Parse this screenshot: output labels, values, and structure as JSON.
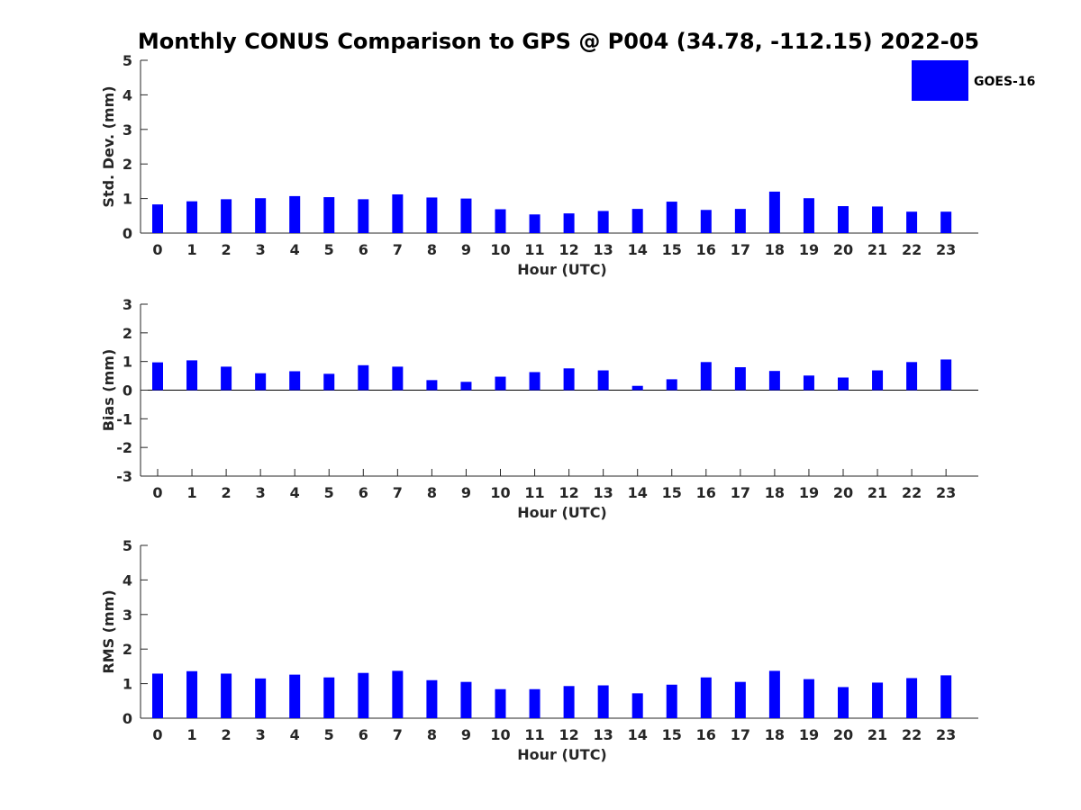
{
  "title": "Monthly CONUS Comparison to GPS @ P004 (34.78, -112.15) 2022-05",
  "legend": {
    "label": "GOES-16",
    "color": "#0000ff"
  },
  "chart_data": [
    {
      "type": "bar",
      "title": "",
      "xlabel": "Hour (UTC)",
      "ylabel": "Std. Dev. (mm)",
      "ylim": [
        0,
        5
      ],
      "yticks": [
        0,
        1,
        2,
        3,
        4,
        5
      ],
      "categories": [
        "0",
        "1",
        "2",
        "3",
        "4",
        "5",
        "6",
        "7",
        "8",
        "9",
        "10",
        "11",
        "12",
        "13",
        "14",
        "15",
        "16",
        "17",
        "18",
        "19",
        "20",
        "21",
        "22",
        "23"
      ],
      "series": [
        {
          "name": "GOES-16",
          "color": "#0000ff",
          "values": [
            0.83,
            0.92,
            0.98,
            1.01,
            1.07,
            1.04,
            0.98,
            1.12,
            1.03,
            1.0,
            0.69,
            0.54,
            0.57,
            0.64,
            0.7,
            0.91,
            0.67,
            0.7,
            1.2,
            1.01,
            0.78,
            0.77,
            0.62,
            0.62
          ]
        }
      ],
      "grid": false,
      "legend_position": "top-right"
    },
    {
      "type": "bar",
      "title": "",
      "xlabel": "Hour (UTC)",
      "ylabel": "Bias (mm)",
      "ylim": [
        -3,
        3
      ],
      "yticks": [
        -3,
        -2,
        -1,
        0,
        1,
        2,
        3
      ],
      "categories": [
        "0",
        "1",
        "2",
        "3",
        "4",
        "5",
        "6",
        "7",
        "8",
        "9",
        "10",
        "11",
        "12",
        "13",
        "14",
        "15",
        "16",
        "17",
        "18",
        "19",
        "20",
        "21",
        "22",
        "23"
      ],
      "series": [
        {
          "name": "GOES-16",
          "color": "#0000ff",
          "values": [
            0.97,
            1.04,
            0.82,
            0.59,
            0.66,
            0.57,
            0.87,
            0.82,
            0.35,
            0.29,
            0.47,
            0.63,
            0.76,
            0.69,
            0.15,
            0.38,
            0.98,
            0.8,
            0.67,
            0.51,
            0.44,
            0.69,
            0.98,
            1.07
          ]
        }
      ],
      "grid": false
    },
    {
      "type": "bar",
      "title": "",
      "xlabel": "Hour (UTC)",
      "ylabel": "RMS (mm)",
      "ylim": [
        0,
        5
      ],
      "yticks": [
        0,
        1,
        2,
        3,
        4,
        5
      ],
      "categories": [
        "0",
        "1",
        "2",
        "3",
        "4",
        "5",
        "6",
        "7",
        "8",
        "9",
        "10",
        "11",
        "12",
        "13",
        "14",
        "15",
        "16",
        "17",
        "18",
        "19",
        "20",
        "21",
        "22",
        "23"
      ],
      "series": [
        {
          "name": "GOES-16",
          "color": "#0000ff",
          "values": [
            1.29,
            1.36,
            1.29,
            1.15,
            1.26,
            1.18,
            1.31,
            1.37,
            1.1,
            1.05,
            0.84,
            0.84,
            0.93,
            0.95,
            0.72,
            0.97,
            1.18,
            1.05,
            1.37,
            1.13,
            0.9,
            1.03,
            1.16,
            1.24
          ]
        }
      ],
      "grid": false
    }
  ]
}
